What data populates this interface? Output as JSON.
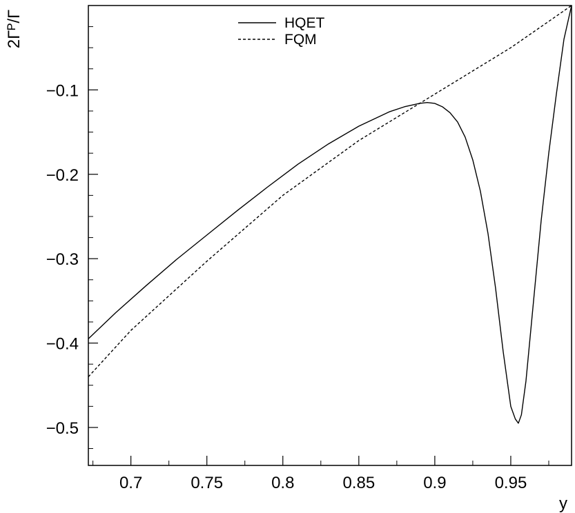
{
  "chart_data": {
    "type": "line",
    "title": "",
    "xlabel": "y",
    "ylabel": "2Γᴾ/Γ",
    "xlim": [
      0.672,
      0.99
    ],
    "ylim": [
      -0.545,
      0.0
    ],
    "x_ticks": [
      0.7,
      0.75,
      0.8,
      0.85,
      0.9,
      0.95
    ],
    "x_tick_labels": [
      "0.7",
      "0.75",
      "0.8",
      "0.85",
      "0.9",
      "0.95"
    ],
    "y_ticks": [
      -0.1,
      -0.2,
      -0.3,
      -0.4,
      -0.5
    ],
    "y_tick_labels": [
      "−0.1",
      "−0.2",
      "−0.3",
      "−0.4",
      "−0.5"
    ],
    "grid": false,
    "legend_placement": "top-center",
    "series": [
      {
        "name": "HQET",
        "style": "solid",
        "color": "#000000",
        "x": [
          0.672,
          0.69,
          0.71,
          0.73,
          0.75,
          0.77,
          0.79,
          0.81,
          0.83,
          0.85,
          0.87,
          0.88,
          0.89,
          0.895,
          0.9,
          0.905,
          0.91,
          0.915,
          0.92,
          0.925,
          0.93,
          0.935,
          0.94,
          0.945,
          0.95,
          0.953,
          0.955,
          0.957,
          0.96,
          0.965,
          0.97,
          0.975,
          0.98,
          0.985,
          0.99
        ],
        "y": [
          -0.395,
          -0.364,
          -0.332,
          -0.301,
          -0.272,
          -0.243,
          -0.215,
          -0.188,
          -0.164,
          -0.143,
          -0.126,
          -0.12,
          -0.116,
          -0.115,
          -0.116,
          -0.12,
          -0.127,
          -0.138,
          -0.156,
          -0.183,
          -0.22,
          -0.27,
          -0.335,
          -0.41,
          -0.475,
          -0.49,
          -0.495,
          -0.485,
          -0.445,
          -0.35,
          -0.255,
          -0.175,
          -0.105,
          -0.04,
          0.0
        ]
      },
      {
        "name": "FQM",
        "style": "dashed",
        "color": "#000000",
        "x": [
          0.672,
          0.7,
          0.75,
          0.8,
          0.85,
          0.9,
          0.95,
          0.99
        ],
        "y": [
          -0.44,
          -0.385,
          -0.303,
          -0.225,
          -0.16,
          -0.105,
          -0.05,
          0.0
        ]
      }
    ]
  }
}
